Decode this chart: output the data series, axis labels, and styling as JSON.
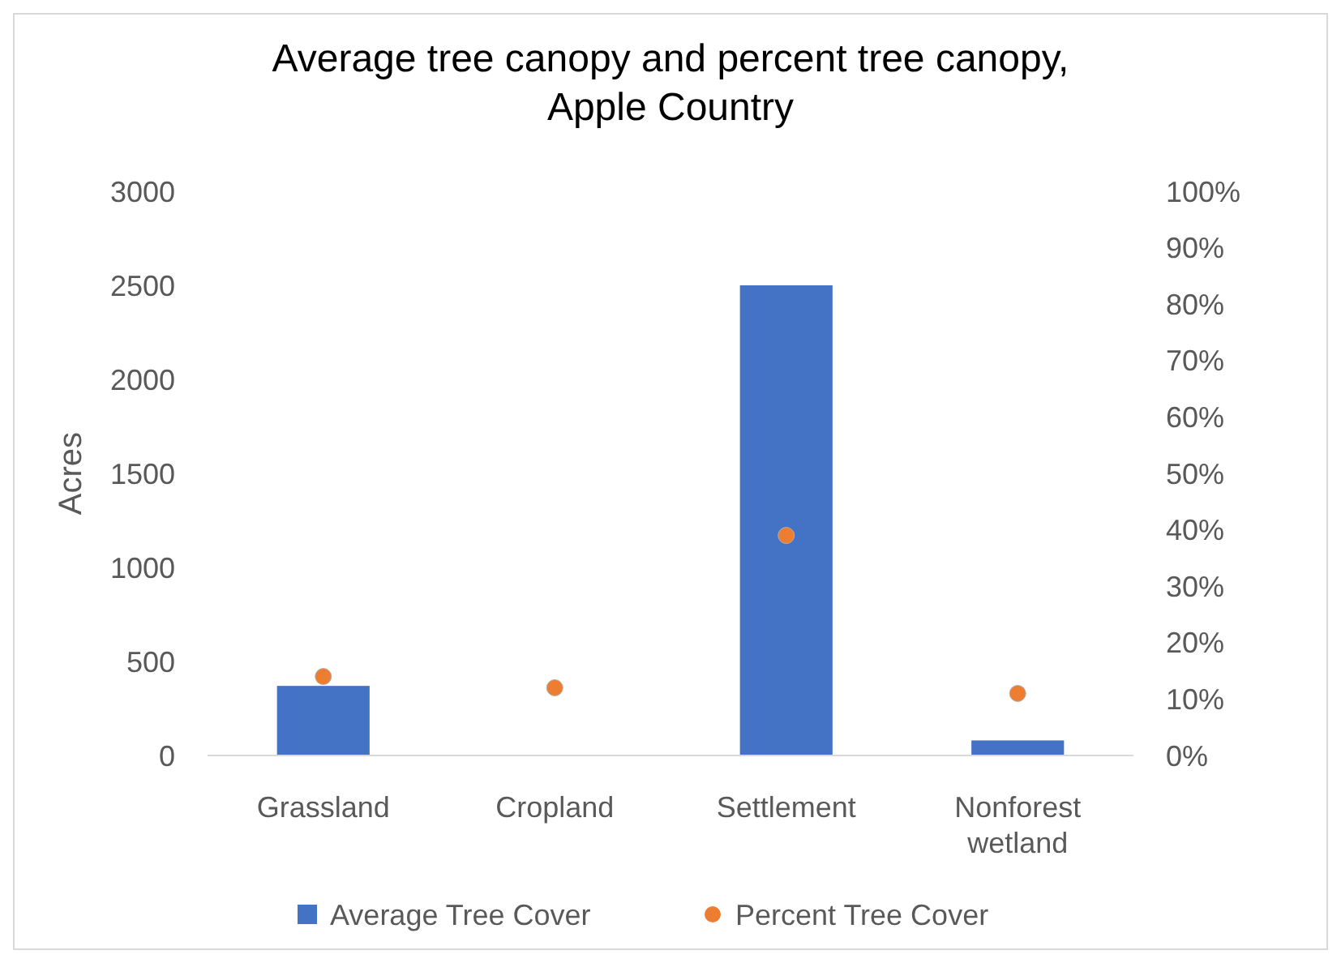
{
  "chart_data": {
    "type": "bar",
    "title": "Average tree canopy and percent tree canopy,\nApple Country",
    "ylabel": "Acres",
    "categories": [
      "Grassland",
      "Cropland",
      "Settlement",
      "Nonforest\nwetland"
    ],
    "series": [
      {
        "name": "Average Tree Cover",
        "color": "#4472c4",
        "values": [
          370,
          0,
          2500,
          80
        ]
      },
      {
        "name": "Percent Tree Cover",
        "type": "scatter",
        "axis": "y2",
        "color": "#ed7d31",
        "marker": "circle",
        "values": [
          14,
          12,
          39,
          11
        ]
      }
    ],
    "ylim": [
      0,
      3000
    ],
    "yticks": [
      0,
      500,
      1000,
      1500,
      2000,
      2500,
      3000
    ],
    "y2lim": [
      0,
      100
    ],
    "y2ticks": [
      {
        "value": 0,
        "label": "0%"
      },
      {
        "value": 10,
        "label": "10%"
      },
      {
        "value": 20,
        "label": "20%"
      },
      {
        "value": 30,
        "label": "30%"
      },
      {
        "value": 40,
        "label": "40%"
      },
      {
        "value": 50,
        "label": "50%"
      },
      {
        "value": 60,
        "label": "60%"
      },
      {
        "value": 70,
        "label": "70%"
      },
      {
        "value": 80,
        "label": "80%"
      },
      {
        "value": 90,
        "label": "90%"
      },
      {
        "value": 100,
        "label": "100%"
      }
    ],
    "legend": "bottom",
    "grid": false
  }
}
